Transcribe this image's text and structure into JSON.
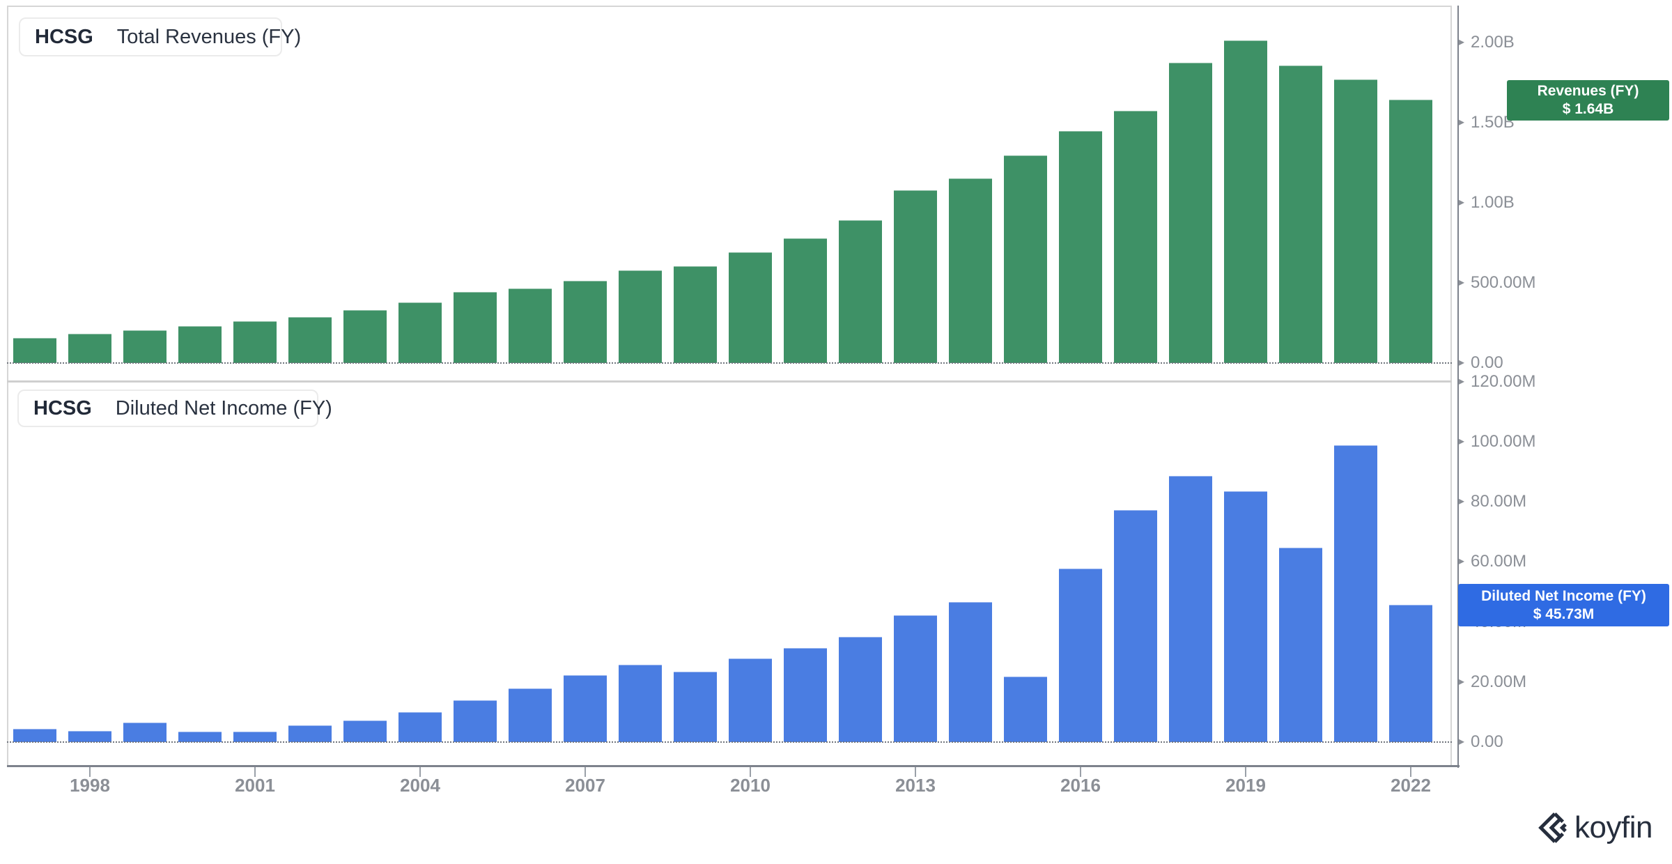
{
  "ticker": "HCSG",
  "watermark": "koyfin",
  "panels": [
    {
      "name": "total-revenues",
      "legend_ticker": "HCSG",
      "legend_metric": "Total Revenues (FY)",
      "badge_title": "Revenues (FY)",
      "badge_value": "$ 1.64B",
      "colors": {
        "bar": "#3e9166",
        "badge": "#2e8253",
        "accent": "#0e7c4a"
      },
      "y_ticks": [
        {
          "label": "2.00B",
          "value": 2000
        },
        {
          "label": "1.50B",
          "value": 1500
        },
        {
          "label": "1.00B",
          "value": 1000
        },
        {
          "label": "500.00M",
          "value": 500
        },
        {
          "label": "0.00",
          "value": 0
        }
      ]
    },
    {
      "name": "diluted-net-income",
      "legend_ticker": "HCSG",
      "legend_metric": "Diluted Net Income (FY)",
      "badge_title": "Diluted Net Income (FY)",
      "badge_value": "$ 45.73M",
      "colors": {
        "bar": "#4a7de2",
        "badge": "#2f6be3",
        "accent": "#1657e8"
      },
      "y_ticks": [
        {
          "label": "120.00M",
          "value": 120
        },
        {
          "label": "100.00M",
          "value": 100
        },
        {
          "label": "80.00M",
          "value": 80
        },
        {
          "label": "60.00M",
          "value": 60
        },
        {
          "label": "40.00M",
          "value": 40
        },
        {
          "label": "20.00M",
          "value": 20
        },
        {
          "label": "0.00",
          "value": 0
        }
      ]
    }
  ],
  "x_axis": {
    "tick_labels": [
      "1998",
      "2001",
      "2004",
      "2007",
      "2010",
      "2013",
      "2016",
      "2019",
      "2022"
    ]
  },
  "chart_data": [
    {
      "type": "bar",
      "title": "HCSG Total Revenues (FY)",
      "unit": "USD millions",
      "legend_position": "top-left",
      "axis_position": "right",
      "grid": false,
      "ylim": [
        0,
        2230
      ],
      "latest_value_label": "$ 1.64B",
      "x": [
        1997,
        1998,
        1999,
        2000,
        2001,
        2002,
        2003,
        2004,
        2005,
        2006,
        2007,
        2008,
        2009,
        2010,
        2011,
        2012,
        2013,
        2014,
        2015,
        2016,
        2017,
        2018,
        2019,
        2020,
        2021,
        2022
      ],
      "values": [
        157,
        183,
        204,
        230,
        261,
        287,
        330,
        378,
        443,
        465,
        513,
        578,
        604,
        691,
        778,
        891,
        1078,
        1150,
        1296,
        1448,
        1574,
        1874,
        2015,
        1857,
        1770,
        1642
      ]
    },
    {
      "type": "bar",
      "title": "HCSG Diluted Net Income (FY)",
      "unit": "USD millions",
      "legend_position": "top-left",
      "axis_position": "right",
      "grid": false,
      "ylim": [
        0,
        125
      ],
      "latest_value_label": "$ 45.73M",
      "x": [
        1997,
        1998,
        1999,
        2000,
        2001,
        2002,
        2003,
        2004,
        2005,
        2006,
        2007,
        2008,
        2009,
        2010,
        2011,
        2012,
        2013,
        2014,
        2015,
        2016,
        2017,
        2018,
        2019,
        2020,
        2021,
        2022
      ],
      "values": [
        4.4,
        3.7,
        6.5,
        3.5,
        3.5,
        5.6,
        7.2,
        10.0,
        13.8,
        17.9,
        22.3,
        25.7,
        23.4,
        27.8,
        31.3,
        35.0,
        42.2,
        46.6,
        21.8,
        57.8,
        77.3,
        88.6,
        83.5,
        64.7,
        98.8,
        45.73
      ]
    }
  ]
}
